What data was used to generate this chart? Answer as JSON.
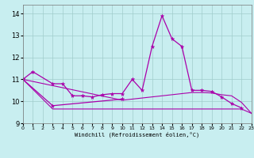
{
  "x": [
    0,
    1,
    2,
    3,
    4,
    5,
    6,
    7,
    8,
    9,
    10,
    11,
    12,
    13,
    14,
    15,
    16,
    17,
    18,
    19,
    20,
    21,
    22,
    23
  ],
  "line1_y": [
    11.0,
    11.35,
    null,
    10.8,
    10.8,
    10.25,
    10.25,
    10.2,
    10.3,
    10.35,
    10.35,
    11.0,
    10.5,
    12.5,
    13.9,
    12.85,
    12.5,
    10.5,
    10.5,
    10.45,
    10.2,
    9.9,
    9.7,
    null
  ],
  "line2_y": [
    11.0,
    null,
    null,
    9.8,
    null,
    null,
    null,
    null,
    null,
    null,
    10.1,
    null,
    null,
    null,
    null,
    null,
    null,
    null,
    null,
    null,
    null,
    null,
    null,
    null
  ],
  "line3_y": [
    11.0,
    null,
    null,
    9.65,
    9.65,
    9.65,
    9.65,
    9.65,
    9.65,
    9.65,
    9.65,
    9.65,
    9.65,
    9.65,
    9.65,
    9.65,
    9.65,
    9.65,
    9.65,
    9.65,
    9.65,
    9.65,
    9.65,
    9.45
  ],
  "line4_y": [
    11.0,
    null,
    null,
    null,
    null,
    null,
    null,
    null,
    null,
    null,
    10.05,
    10.1,
    10.15,
    10.2,
    10.25,
    10.3,
    10.35,
    10.4,
    10.4,
    10.38,
    10.3,
    10.25,
    9.95,
    9.45
  ],
  "bg_color": "#c8eef0",
  "line_color": "#aa00aa",
  "grid_color": "#a0cccc",
  "xlabel": "Windchill (Refroidissement éolien,°C)",
  "ylim": [
    9.0,
    14.4
  ],
  "xlim": [
    0,
    23
  ],
  "yticks": [
    9,
    10,
    11,
    12,
    13,
    14
  ],
  "xticks": [
    0,
    1,
    2,
    3,
    4,
    5,
    6,
    7,
    8,
    9,
    10,
    11,
    12,
    13,
    14,
    15,
    16,
    17,
    18,
    19,
    20,
    21,
    22,
    23
  ]
}
